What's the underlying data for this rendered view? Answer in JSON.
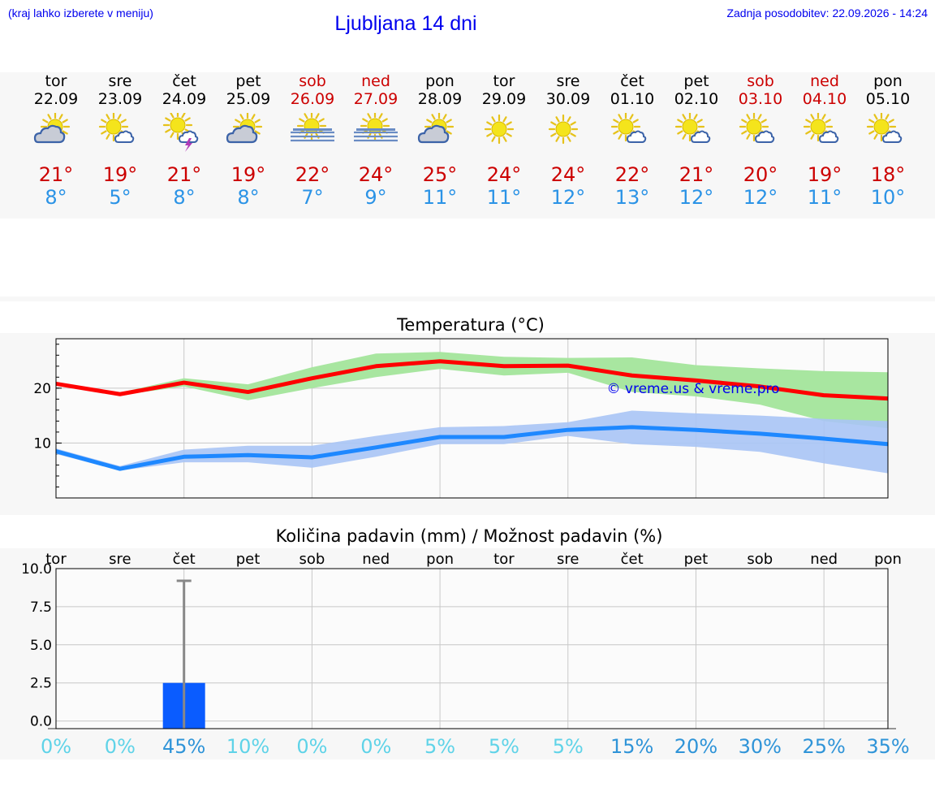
{
  "header": {
    "hint": "(kraj lahko izberete v meniju)",
    "title": "Ljubljana 14 dni",
    "updated": "Zadnja posodobitev: 22.09.2026 - 14:24"
  },
  "days": [
    {
      "name": "tor",
      "date": "22.09",
      "weekend": false,
      "icon": "sun-cloud-icon",
      "tmax": "21°",
      "tmin": "8°"
    },
    {
      "name": "sre",
      "date": "23.09",
      "weekend": false,
      "icon": "sun-small-cloud-icon",
      "tmax": "19°",
      "tmin": "5°"
    },
    {
      "name": "čet",
      "date": "24.09",
      "weekend": false,
      "icon": "sun-thunder-icon",
      "tmax": "21°",
      "tmin": "8°"
    },
    {
      "name": "pet",
      "date": "25.09",
      "weekend": false,
      "icon": "sun-cloud-icon",
      "tmax": "19°",
      "tmin": "8°"
    },
    {
      "name": "sob",
      "date": "26.09",
      "weekend": true,
      "icon": "sun-fog-icon",
      "tmax": "22°",
      "tmin": "7°"
    },
    {
      "name": "ned",
      "date": "27.09",
      "weekend": true,
      "icon": "sun-fog-icon",
      "tmax": "24°",
      "tmin": "9°"
    },
    {
      "name": "pon",
      "date": "28.09",
      "weekend": false,
      "icon": "sun-cloud-icon",
      "tmax": "25°",
      "tmin": "11°"
    },
    {
      "name": "tor",
      "date": "29.09",
      "weekend": false,
      "icon": "sun-icon",
      "tmax": "24°",
      "tmin": "11°"
    },
    {
      "name": "sre",
      "date": "30.09",
      "weekend": false,
      "icon": "sun-icon",
      "tmax": "24°",
      "tmin": "12°"
    },
    {
      "name": "čet",
      "date": "01.10",
      "weekend": false,
      "icon": "sun-small-cloud-icon",
      "tmax": "22°",
      "tmin": "13°"
    },
    {
      "name": "pet",
      "date": "02.10",
      "weekend": false,
      "icon": "sun-small-cloud-icon",
      "tmax": "21°",
      "tmin": "12°"
    },
    {
      "name": "sob",
      "date": "03.10",
      "weekend": true,
      "icon": "sun-small-cloud-icon",
      "tmax": "20°",
      "tmin": "12°"
    },
    {
      "name": "ned",
      "date": "04.10",
      "weekend": true,
      "icon": "sun-small-cloud-icon",
      "tmax": "19°",
      "tmin": "11°"
    },
    {
      "name": "pon",
      "date": "05.10",
      "weekend": false,
      "icon": "sun-small-cloud-icon",
      "tmax": "18°",
      "tmin": "10°"
    }
  ],
  "colors": {
    "weekday": "#000000",
    "weekend": "#cc0000",
    "tmax": "#cc0000",
    "tmin": "#2b93e6",
    "max_line": "#ff0000",
    "max_band": "#a8e6a0",
    "min_line": "#1e88ff",
    "min_band": "#a9c4f5",
    "bar": "#0a5cff",
    "error_bar": "#888888",
    "prob_low": "#5fd3e8",
    "prob_high": "#2f94d8"
  },
  "chart_data": [
    {
      "type": "line",
      "title": "Temperatura (°C)",
      "watermark": "© vreme.us & vreme.pro",
      "x": [
        "22.09",
        "23.09",
        "24.09",
        "25.09",
        "26.09",
        "27.09",
        "28.09",
        "29.09",
        "30.09",
        "01.10",
        "02.10",
        "03.10",
        "04.10",
        "05.10"
      ],
      "ylim": [
        0,
        29
      ],
      "yticks": [
        10,
        20
      ],
      "grid": true,
      "series": [
        {
          "key": "max",
          "values": [
            20.8,
            18.9,
            21.0,
            19.3,
            21.8,
            24.0,
            24.9,
            24.0,
            24.1,
            22.3,
            21.4,
            20.3,
            18.7,
            18.1
          ],
          "band_low": [
            20.5,
            18.7,
            20.3,
            17.8,
            20.0,
            22.0,
            23.5,
            22.3,
            22.8,
            19.3,
            18.5,
            17.0,
            14.0,
            12.7
          ],
          "band_high": [
            21.1,
            19.2,
            21.8,
            20.7,
            23.8,
            26.3,
            26.6,
            25.7,
            25.5,
            25.6,
            24.2,
            23.6,
            23.1,
            22.9
          ]
        },
        {
          "key": "min",
          "values": [
            8.5,
            5.3,
            7.5,
            7.8,
            7.4,
            9.2,
            11.1,
            11.1,
            12.4,
            12.9,
            12.4,
            11.7,
            10.8,
            9.8
          ],
          "band_low": [
            8.0,
            5.0,
            6.5,
            6.5,
            5.5,
            7.5,
            9.8,
            9.8,
            11.3,
            9.8,
            9.3,
            8.4,
            6.3,
            4.5
          ],
          "band_high": [
            9.0,
            5.8,
            8.8,
            9.5,
            9.5,
            11.3,
            12.9,
            13.1,
            13.8,
            15.9,
            15.4,
            15.0,
            14.4,
            14.0
          ]
        }
      ]
    },
    {
      "type": "bar",
      "title": "Količina padavin (mm) / Možnost padavin (%)",
      "categories": [
        "tor",
        "sre",
        "čet",
        "pet",
        "sob",
        "ned",
        "pon",
        "tor",
        "sre",
        "čet",
        "pet",
        "sob",
        "ned",
        "pon"
      ],
      "values": [
        0,
        0,
        2.5,
        0,
        0,
        0,
        0,
        0,
        0,
        0,
        0,
        0,
        0,
        0
      ],
      "error_high": [
        0,
        0,
        9.2,
        0,
        0,
        0,
        0,
        0,
        0,
        0,
        0,
        0,
        0,
        0
      ],
      "ylim": [
        -0.5,
        10.0
      ],
      "yticks": [
        "0.0",
        "2.5",
        "5.0",
        "7.5",
        "10.0"
      ],
      "probability": [
        "0%",
        "0%",
        "45%",
        "10%",
        "0%",
        "0%",
        "5%",
        "5%",
        "5%",
        "15%",
        "20%",
        "30%",
        "25%",
        "35%"
      ],
      "grid": true
    }
  ]
}
